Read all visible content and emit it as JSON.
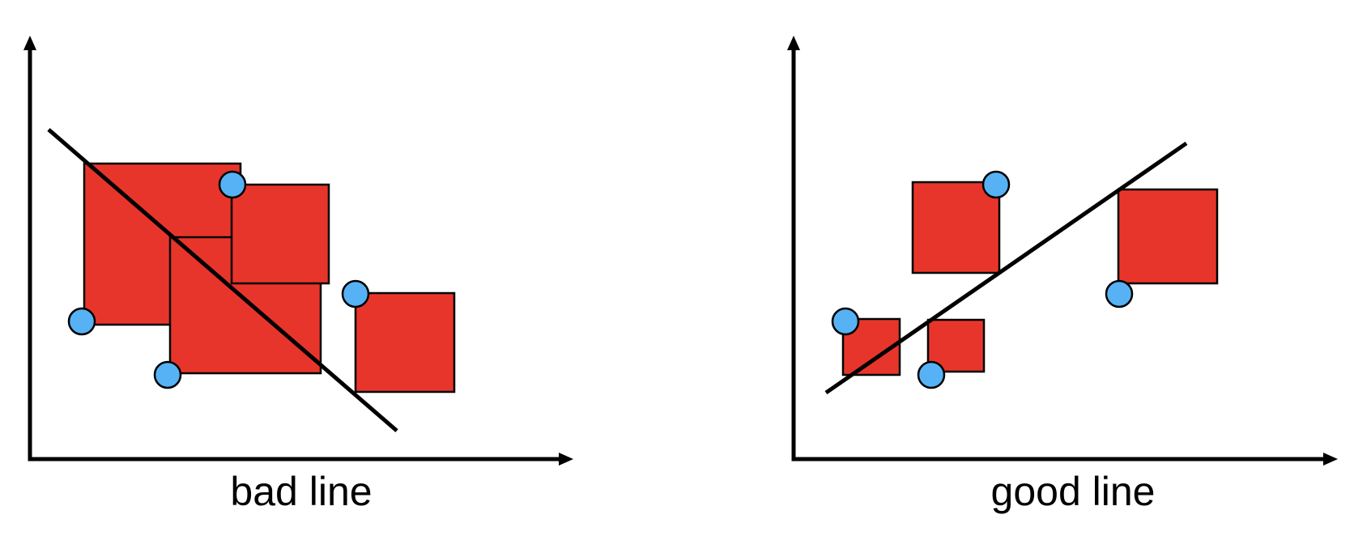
{
  "panels": {
    "bad": {
      "caption": "bad line"
    },
    "good": {
      "caption": "good line"
    }
  },
  "colors": {
    "square_fill": "#E8352B",
    "point_fill": "#56B2F5",
    "stroke": "#000000",
    "background": "#FFFFFF"
  }
}
